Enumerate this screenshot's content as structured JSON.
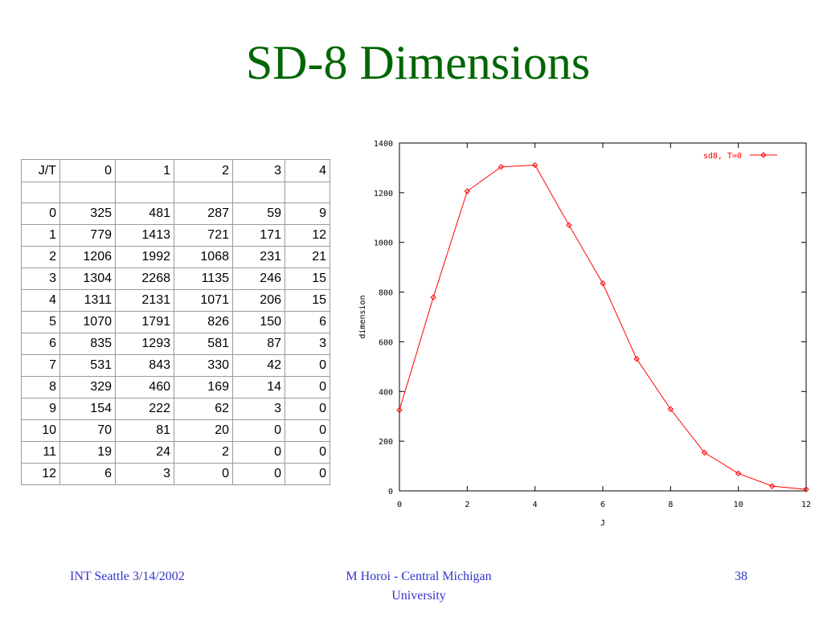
{
  "slide": {
    "title": "SD-8 Dimensions",
    "footer_left": "INT Seattle 3/14/2002",
    "footer_center_line1": "M Horoi - Central Michigan",
    "footer_center_line2": "University",
    "page_number": "38"
  },
  "table": {
    "header": [
      "J/T",
      "0",
      "1",
      "2",
      "3",
      "4"
    ],
    "rows": [
      [
        "0",
        "325",
        "481",
        "287",
        "59",
        "9"
      ],
      [
        "1",
        "779",
        "1413",
        "721",
        "171",
        "12"
      ],
      [
        "2",
        "1206",
        "1992",
        "1068",
        "231",
        "21"
      ],
      [
        "3",
        "1304",
        "2268",
        "1135",
        "246",
        "15"
      ],
      [
        "4",
        "1311",
        "2131",
        "1071",
        "206",
        "15"
      ],
      [
        "5",
        "1070",
        "1791",
        "826",
        "150",
        "6"
      ],
      [
        "6",
        "835",
        "1293",
        "581",
        "87",
        "3"
      ],
      [
        "7",
        "531",
        "843",
        "330",
        "42",
        "0"
      ],
      [
        "8",
        "329",
        "460",
        "169",
        "14",
        "0"
      ],
      [
        "9",
        "154",
        "222",
        "62",
        "3",
        "0"
      ],
      [
        "10",
        "70",
        "81",
        "20",
        "0",
        "0"
      ],
      [
        "11",
        "19",
        "24",
        "2",
        "0",
        "0"
      ],
      [
        "12",
        "6",
        "3",
        "0",
        "0",
        "0"
      ]
    ]
  },
  "chart_data": {
    "type": "line",
    "xlabel": "J",
    "ylabel": "dimension",
    "xlim": [
      0,
      12
    ],
    "ylim": [
      0,
      1400
    ],
    "x_ticks": [
      "0",
      "2",
      "4",
      "6",
      "8",
      "10",
      "12"
    ],
    "y_ticks": [
      "0",
      "200",
      "400",
      "600",
      "800",
      "1000",
      "1200",
      "1400"
    ],
    "legend_position": "top-right",
    "series": [
      {
        "name": "sd8, T=0",
        "color": "#ff0000",
        "x": [
          0,
          1,
          2,
          3,
          4,
          5,
          6,
          7,
          8,
          9,
          10,
          11,
          12
        ],
        "y": [
          325,
          779,
          1206,
          1304,
          1311,
          1070,
          835,
          531,
          329,
          154,
          70,
          19,
          6
        ]
      }
    ]
  }
}
